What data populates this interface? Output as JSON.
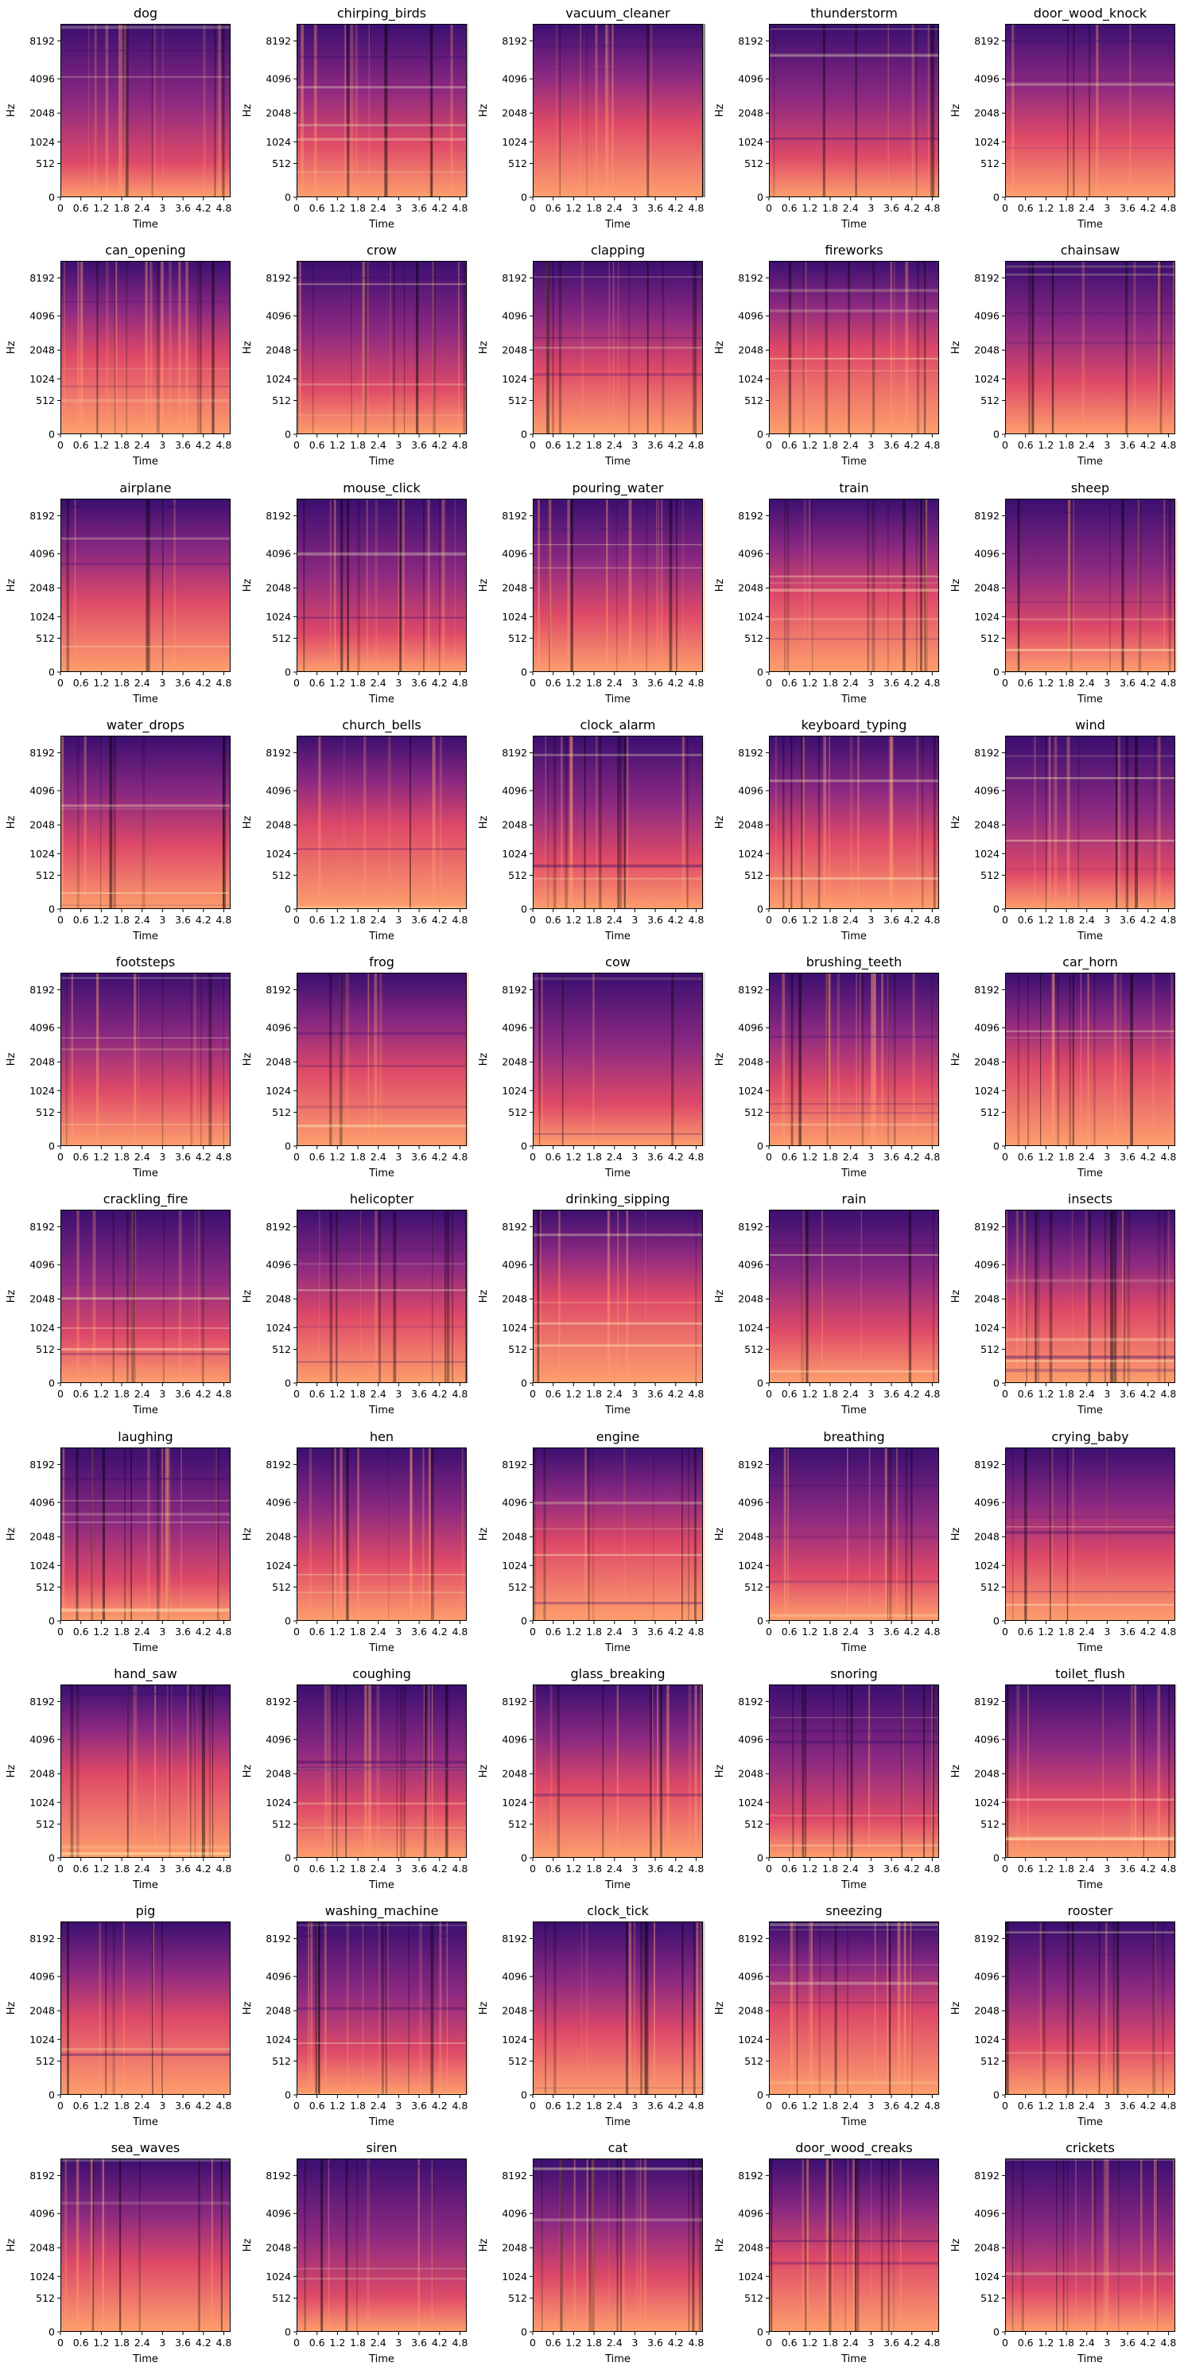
{
  "chart_data": {
    "type": "heatmap",
    "subtype": "mel-spectrogram grid",
    "layout": {
      "rows": 10,
      "cols": 5
    },
    "xlabel": "Time",
    "ylabel": "Hz",
    "xlim": [
      0,
      5.0
    ],
    "xticks": [
      "0",
      "0.6",
      "1.2",
      "1.8",
      "2.4",
      "3",
      "3.6",
      "4.2",
      "4.8"
    ],
    "xtick_values": [
      0,
      0.6,
      1.2,
      1.8,
      2.4,
      3.0,
      3.6,
      4.2,
      4.8
    ],
    "yticks": [
      "0",
      "512",
      "1024",
      "2048",
      "4096",
      "8192"
    ],
    "yscale": "mel",
    "colormap": "magma",
    "colors": {
      "low": "#000004",
      "mid1": "#3b0f70",
      "mid2": "#8c2981",
      "mid3": "#de4968",
      "high": "#fe9f6d",
      "top": "#fcfdbf"
    },
    "panels": [
      {
        "title": "dog"
      },
      {
        "title": "chirping_birds"
      },
      {
        "title": "vacuum_cleaner"
      },
      {
        "title": "thunderstorm"
      },
      {
        "title": "door_wood_knock"
      },
      {
        "title": "can_opening"
      },
      {
        "title": "crow"
      },
      {
        "title": "clapping"
      },
      {
        "title": "fireworks"
      },
      {
        "title": "chainsaw"
      },
      {
        "title": "airplane"
      },
      {
        "title": "mouse_click"
      },
      {
        "title": "pouring_water"
      },
      {
        "title": "train"
      },
      {
        "title": "sheep"
      },
      {
        "title": "water_drops"
      },
      {
        "title": "church_bells"
      },
      {
        "title": "clock_alarm"
      },
      {
        "title": "keyboard_typing"
      },
      {
        "title": "wind"
      },
      {
        "title": "footsteps"
      },
      {
        "title": "frog"
      },
      {
        "title": "cow"
      },
      {
        "title": "brushing_teeth"
      },
      {
        "title": "car_horn"
      },
      {
        "title": "crackling_fire"
      },
      {
        "title": "helicopter"
      },
      {
        "title": "drinking_sipping"
      },
      {
        "title": "rain"
      },
      {
        "title": "insects"
      },
      {
        "title": "laughing"
      },
      {
        "title": "hen"
      },
      {
        "title": "engine"
      },
      {
        "title": "breathing"
      },
      {
        "title": "crying_baby"
      },
      {
        "title": "hand_saw"
      },
      {
        "title": "coughing"
      },
      {
        "title": "glass_breaking"
      },
      {
        "title": "snoring"
      },
      {
        "title": "toilet_flush"
      },
      {
        "title": "pig"
      },
      {
        "title": "washing_machine"
      },
      {
        "title": "clock_tick"
      },
      {
        "title": "sneezing"
      },
      {
        "title": "rooster"
      },
      {
        "title": "sea_waves"
      },
      {
        "title": "siren"
      },
      {
        "title": "cat"
      },
      {
        "title": "door_wood_creaks"
      },
      {
        "title": "crickets"
      }
    ]
  }
}
